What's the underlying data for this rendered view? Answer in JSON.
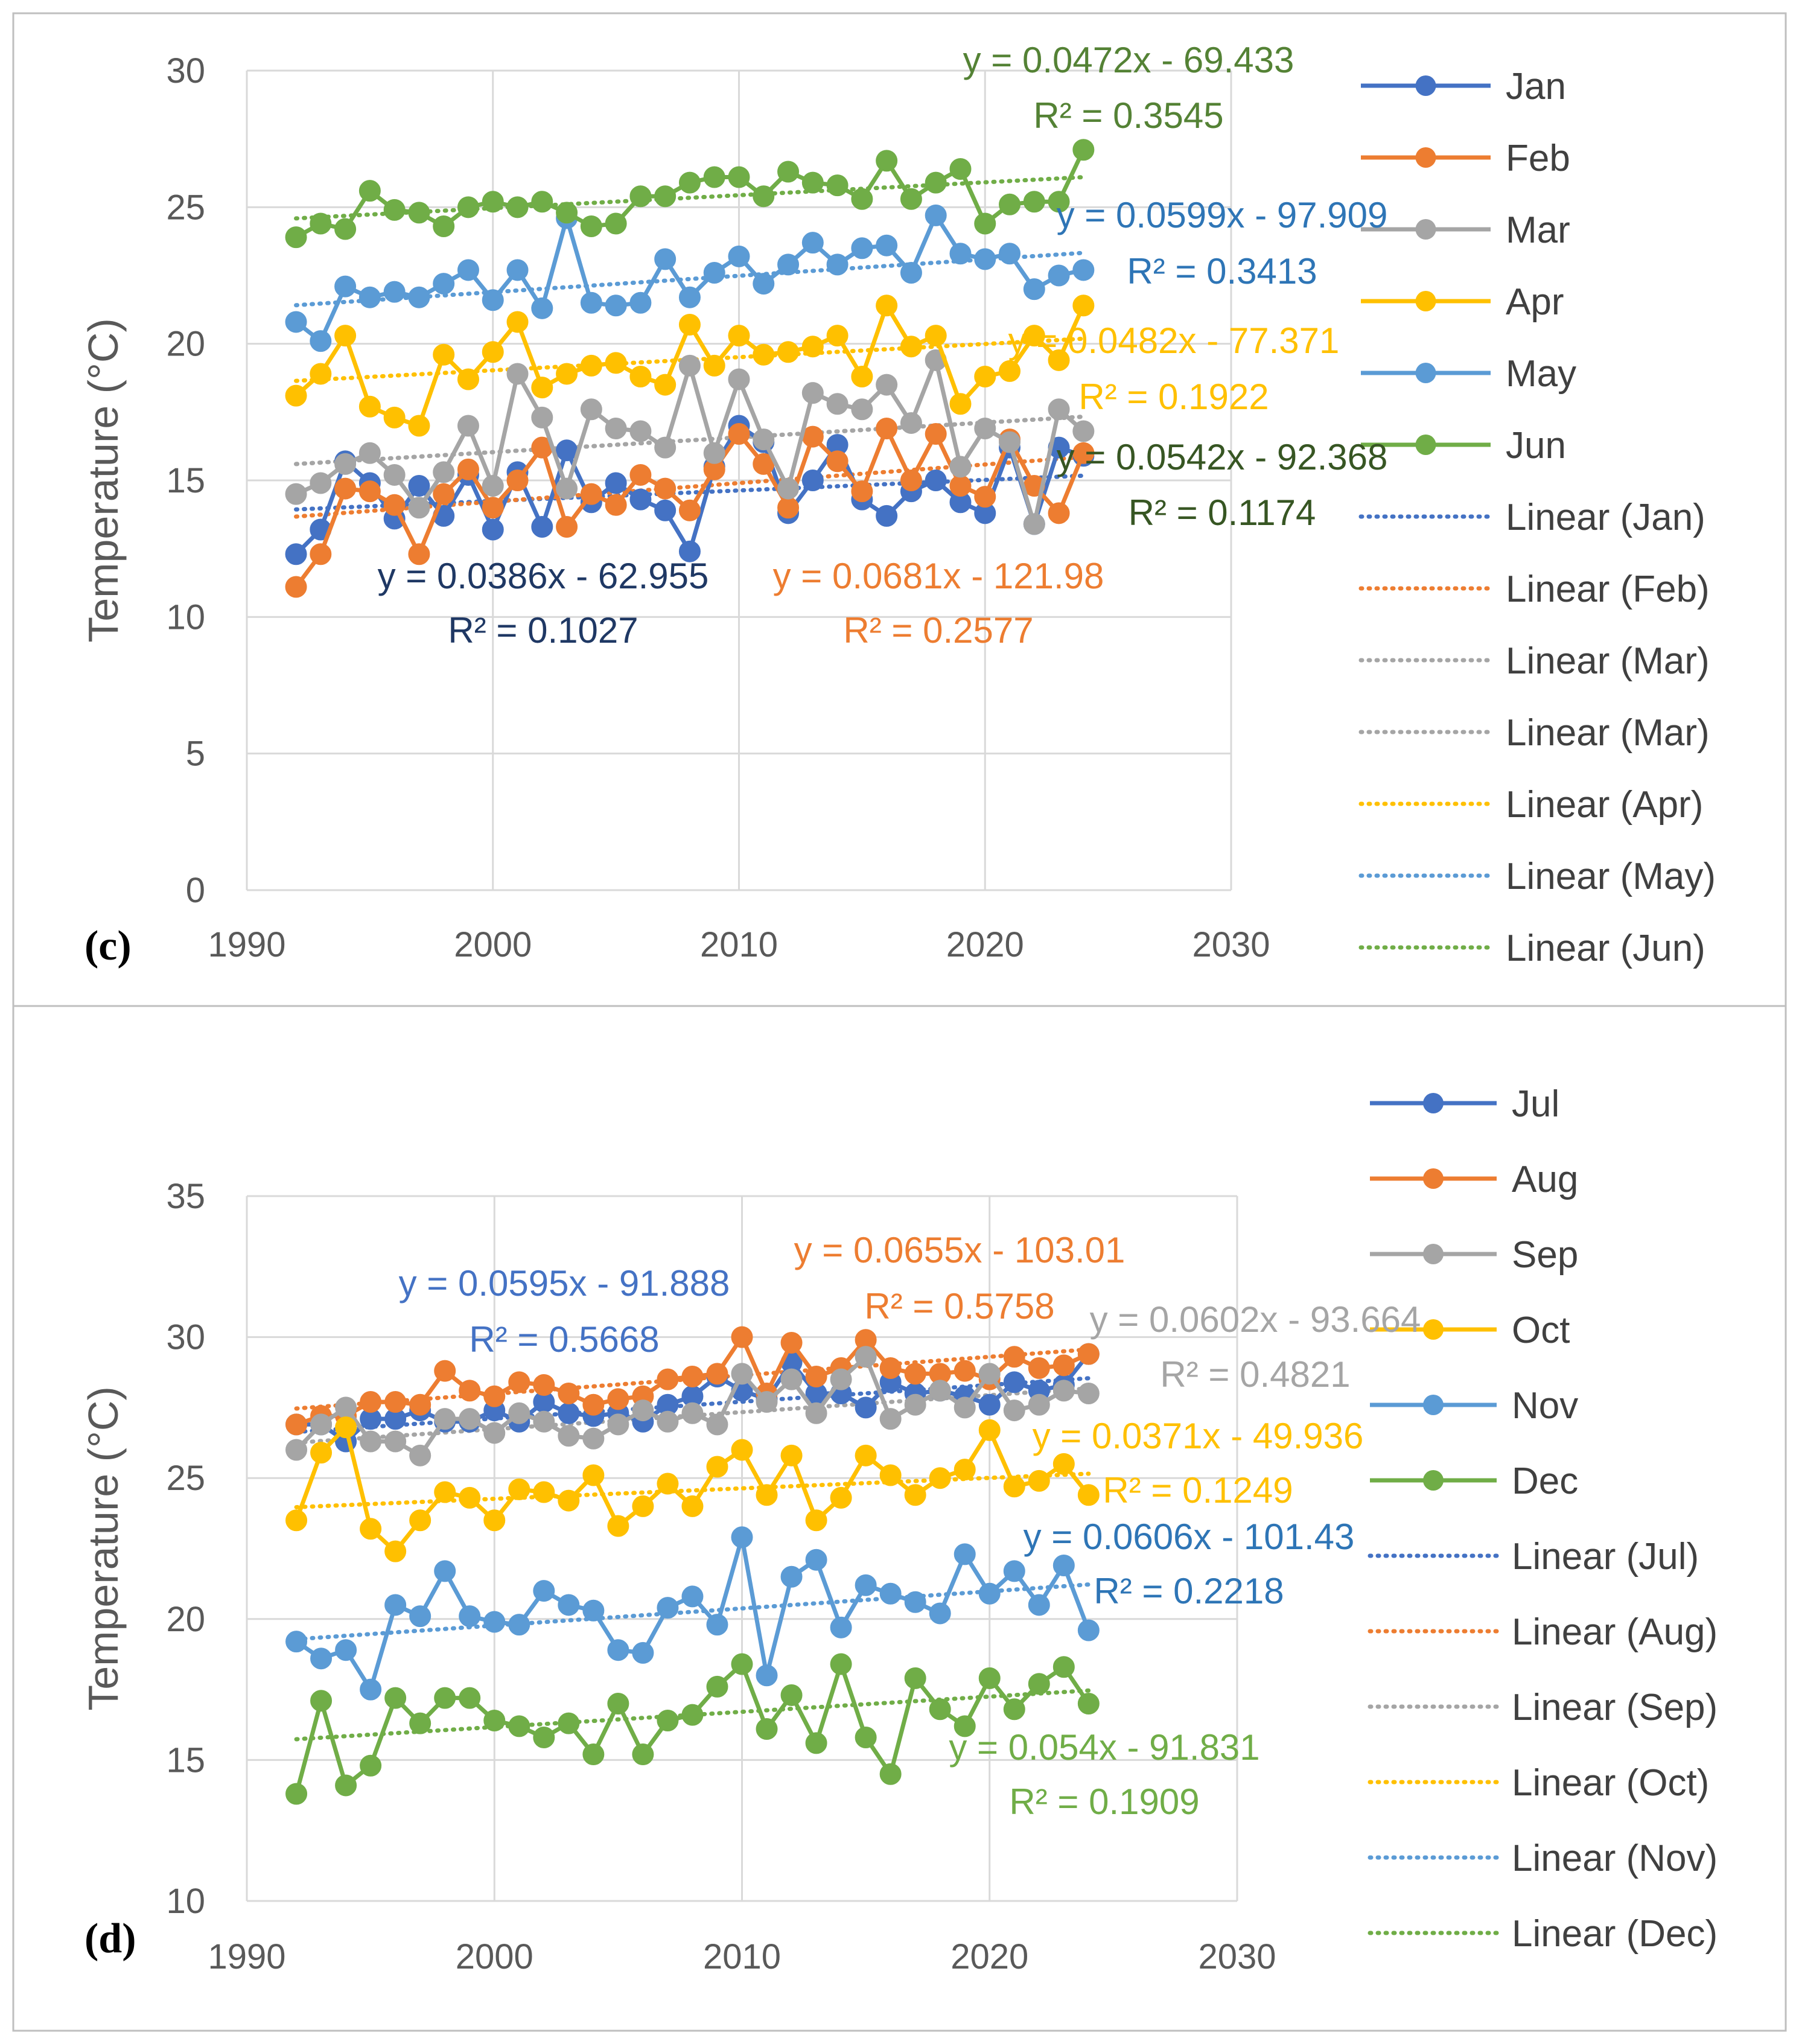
{
  "chart_data": [
    {
      "type": "line",
      "panel_label": "(c)",
      "xlabel": "",
      "ylabel": "Temperature (°C)",
      "xlim": [
        1990,
        2030
      ],
      "ylim": [
        0,
        30
      ],
      "xticks": [
        "1990",
        "2000",
        "2010",
        "2020",
        "2030"
      ],
      "yticks": [
        "0",
        "5",
        "10",
        "15",
        "20",
        "25",
        "30"
      ],
      "grid": true,
      "legend_position": "right",
      "x": [
        1992,
        1993,
        1994,
        1995,
        1996,
        1997,
        1998,
        1999,
        2000,
        2001,
        2002,
        2003,
        2004,
        2005,
        2006,
        2007,
        2008,
        2009,
        2010,
        2011,
        2012,
        2013,
        2014,
        2015,
        2016,
        2017,
        2018,
        2019,
        2020,
        2021,
        2022,
        2023,
        2024
      ],
      "series": [
        {
          "name": "Jan",
          "color": "#4472C4",
          "values": [
            12.3,
            13.2,
            15.7,
            14.9,
            13.6,
            14.8,
            13.7,
            15.2,
            13.2,
            15.3,
            13.3,
            16.1,
            14.2,
            14.9,
            14.3,
            13.9,
            12.4,
            15.5,
            17.0,
            16.4,
            13.8,
            15.0,
            16.3,
            14.3,
            13.7,
            14.6,
            15.0,
            14.2,
            13.8,
            16.2,
            13.4,
            16.2,
            15.9
          ]
        },
        {
          "name": "Feb",
          "color": "#ED7D31",
          "values": [
            11.1,
            12.3,
            14.7,
            14.6,
            14.1,
            12.3,
            14.5,
            15.4,
            14.0,
            15.0,
            16.2,
            13.3,
            14.5,
            14.1,
            15.2,
            14.7,
            13.9,
            15.4,
            16.7,
            15.6,
            14.0,
            16.6,
            15.7,
            14.6,
            16.9,
            15.0,
            16.7,
            14.8,
            14.4,
            16.5,
            14.8,
            13.8,
            16.0
          ]
        },
        {
          "name": "Mar",
          "color": "#A5A5A5",
          "values": [
            14.5,
            14.9,
            15.6,
            16.0,
            15.2,
            14.0,
            15.3,
            17.0,
            14.8,
            18.9,
            17.3,
            14.7,
            17.6,
            16.9,
            16.8,
            16.2,
            19.2,
            16.0,
            18.7,
            16.5,
            14.7,
            18.2,
            17.8,
            17.6,
            18.5,
            17.1,
            19.4,
            15.5,
            16.9,
            16.4,
            13.4,
            17.6,
            16.8
          ]
        },
        {
          "name": "Apr",
          "color": "#FFC000",
          "values": [
            18.1,
            18.9,
            20.3,
            17.7,
            17.3,
            17.0,
            19.6,
            18.7,
            19.7,
            20.8,
            18.4,
            18.9,
            19.2,
            19.3,
            18.8,
            18.5,
            20.7,
            19.2,
            20.3,
            19.6,
            19.7,
            19.9,
            20.3,
            18.8,
            21.4,
            19.9,
            20.3,
            17.8,
            18.8,
            19.0,
            20.3,
            19.4,
            21.4
          ]
        },
        {
          "name": "May",
          "color": "#5B9BD5",
          "values": [
            20.8,
            20.1,
            22.1,
            21.7,
            21.9,
            21.7,
            22.2,
            22.7,
            21.6,
            22.7,
            21.3,
            24.6,
            21.5,
            21.4,
            21.5,
            23.1,
            21.7,
            22.6,
            23.2,
            22.2,
            22.9,
            23.7,
            22.9,
            23.5,
            23.6,
            22.6,
            24.7,
            23.3,
            23.1,
            23.3,
            22.0,
            22.5,
            22.7
          ]
        },
        {
          "name": "Jun",
          "color": "#70AD47",
          "values": [
            23.9,
            24.4,
            24.2,
            25.6,
            24.9,
            24.8,
            24.3,
            25.0,
            25.2,
            25.0,
            25.2,
            24.8,
            24.3,
            24.4,
            25.4,
            25.4,
            25.9,
            26.1,
            26.1,
            25.4,
            26.3,
            25.9,
            25.8,
            25.3,
            26.7,
            25.3,
            25.9,
            26.4,
            24.4,
            25.1,
            25.2,
            25.2,
            27.1
          ]
        }
      ],
      "legend": [
        "Jan",
        "Feb",
        "Mar",
        "Apr",
        "May",
        "Jun",
        "Linear (Jan)",
        "Linear (Feb)",
        "Linear (Mar)",
        "Linear (Mar)",
        "Linear (Apr)",
        "Linear (May)",
        "Linear (Jun)"
      ],
      "trendlines": [
        {
          "series": "Jan",
          "label": "Linear (Jan)",
          "color": "#4472C4",
          "slope": 0.0386,
          "intercept": -62.955
        },
        {
          "series": "Feb",
          "label": "Linear (Feb)",
          "color": "#ED7D31",
          "slope": 0.0681,
          "intercept": -121.98
        },
        {
          "series": "Mar",
          "label": "Linear (Mar)",
          "color": "#A5A5A5",
          "slope": 0.0542,
          "intercept": -92.368
        },
        {
          "series": "Mar",
          "label": "Linear (Mar)",
          "color": "#A5A5A5",
          "slope": 0.0542,
          "intercept": -92.368
        },
        {
          "series": "Apr",
          "label": "Linear (Apr)",
          "color": "#FFC000",
          "slope": 0.0482,
          "intercept": -77.371
        },
        {
          "series": "May",
          "label": "Linear (May)",
          "color": "#5B9BD5",
          "slope": 0.0599,
          "intercept": -97.909
        },
        {
          "series": "Jun",
          "label": "Linear (Jun)",
          "color": "#70AD47",
          "slope": 0.0472,
          "intercept": -69.433
        }
      ],
      "annotations": [
        {
          "eq": "y = 0.0472x - 69.433",
          "r2": "R² = 0.3545",
          "color": "#548235"
        },
        {
          "eq": "y = 0.0599x - 97.909",
          "r2": "R² = 0.3413",
          "color": "#2E75B6"
        },
        {
          "eq": "y = 0.0482x - 77.371",
          "r2": "R² = 0.1922",
          "color": "#FFC000"
        },
        {
          "eq": "y = 0.0542x - 92.368",
          "r2": "R² = 0.1174",
          "color": "#375623"
        },
        {
          "eq": "y = 0.0386x - 62.955",
          "r2": "R² = 0.1027",
          "color": "#1F3864"
        },
        {
          "eq": "y = 0.0681x - 121.98",
          "r2": "R² = 0.2577",
          "color": "#ED7D31"
        }
      ]
    },
    {
      "type": "line",
      "panel_label": "(d)",
      "xlabel": "",
      "ylabel": "Temperature (°C)",
      "xlim": [
        1990,
        2030
      ],
      "ylim": [
        10,
        35
      ],
      "xticks": [
        "1990",
        "2000",
        "2010",
        "2020",
        "2030"
      ],
      "yticks": [
        "10",
        "15",
        "20",
        "25",
        "30",
        "35"
      ],
      "grid": true,
      "legend_position": "right",
      "x": [
        1992,
        1993,
        1994,
        1995,
        1996,
        1997,
        1998,
        1999,
        2000,
        2001,
        2002,
        2003,
        2004,
        2005,
        2006,
        2007,
        2008,
        2009,
        2010,
        2011,
        2012,
        2013,
        2014,
        2015,
        2016,
        2017,
        2018,
        2019,
        2020,
        2021,
        2022,
        2023,
        2024
      ],
      "series": [
        {
          "name": "Jul",
          "color": "#4472C4",
          "values": [
            26.9,
            26.9,
            26.3,
            27.1,
            27.1,
            27.4,
            27.0,
            27.0,
            27.4,
            27.0,
            27.7,
            27.3,
            27.2,
            27.3,
            27.0,
            27.6,
            27.9,
            28.6,
            28.1,
            27.8,
            29.1,
            28.0,
            28.0,
            27.5,
            28.4,
            28.0,
            28.1,
            27.9,
            27.6,
            28.4,
            28.1,
            28.3,
            29.4
          ]
        },
        {
          "name": "Aug",
          "color": "#ED7D31",
          "values": [
            26.9,
            27.2,
            27.2,
            27.7,
            27.7,
            27.6,
            28.8,
            28.1,
            27.9,
            28.4,
            28.3,
            28.0,
            27.6,
            27.8,
            27.9,
            28.5,
            28.6,
            28.7,
            30.0,
            28.0,
            29.8,
            28.6,
            28.9,
            29.9,
            28.9,
            28.7,
            28.7,
            28.8,
            28.5,
            29.3,
            28.9,
            29.0,
            29.4
          ]
        },
        {
          "name": "Sep",
          "color": "#A5A5A5",
          "values": [
            26.0,
            26.9,
            27.5,
            26.3,
            26.3,
            25.8,
            27.1,
            27.1,
            26.6,
            27.3,
            27.0,
            26.5,
            26.4,
            26.9,
            27.4,
            27.0,
            27.3,
            26.9,
            28.7,
            27.7,
            28.5,
            27.3,
            28.5,
            29.3,
            27.1,
            27.6,
            28.1,
            27.5,
            28.7,
            27.4,
            27.6,
            28.1,
            28.0
          ]
        },
        {
          "name": "Oct",
          "color": "#FFC000",
          "values": [
            23.5,
            25.9,
            26.8,
            23.2,
            22.4,
            23.5,
            24.5,
            24.3,
            23.5,
            24.6,
            24.5,
            24.2,
            25.1,
            23.3,
            24.0,
            24.8,
            24.0,
            25.4,
            26.0,
            24.4,
            25.8,
            23.5,
            24.3,
            25.8,
            25.1,
            24.4,
            25.0,
            25.3,
            26.7,
            24.7,
            24.9,
            25.5,
            24.4
          ]
        },
        {
          "name": "Nov",
          "color": "#5B9BD5",
          "values": [
            19.2,
            18.6,
            18.9,
            17.5,
            20.5,
            20.1,
            21.7,
            20.1,
            19.9,
            19.8,
            21.0,
            20.5,
            20.3,
            18.9,
            18.8,
            20.4,
            20.8,
            19.8,
            22.9,
            18.0,
            21.5,
            22.1,
            19.7,
            21.2,
            20.9,
            20.6,
            20.2,
            22.3,
            20.9,
            21.7,
            20.5,
            21.9,
            19.6
          ]
        },
        {
          "name": "Dec",
          "color": "#70AD47",
          "values": [
            13.8,
            17.1,
            14.1,
            14.8,
            17.2,
            16.3,
            17.2,
            17.2,
            16.4,
            16.2,
            15.8,
            16.3,
            15.2,
            17.0,
            15.2,
            16.4,
            16.6,
            17.6,
            18.4,
            16.1,
            17.3,
            15.6,
            18.4,
            15.8,
            14.5,
            17.9,
            16.8,
            16.2,
            17.9,
            16.8,
            17.7,
            18.3,
            17.0
          ]
        }
      ],
      "legend": [
        "Jul",
        "Aug",
        "Sep",
        "Oct",
        "Nov",
        "Dec",
        "Linear (Jul)",
        "Linear (Aug)",
        "Linear (Sep)",
        "Linear (Oct)",
        "Linear (Nov)",
        "Linear (Dec)"
      ],
      "trendlines": [
        {
          "series": "Jul",
          "label": "Linear (Jul)",
          "color": "#4472C4",
          "slope": 0.0595,
          "intercept": -91.888
        },
        {
          "series": "Aug",
          "label": "Linear (Aug)",
          "color": "#ED7D31",
          "slope": 0.0655,
          "intercept": -103.01
        },
        {
          "series": "Sep",
          "label": "Linear (Sep)",
          "color": "#A5A5A5",
          "slope": 0.0602,
          "intercept": -93.664
        },
        {
          "series": "Oct",
          "label": "Linear (Oct)",
          "color": "#FFC000",
          "slope": 0.0371,
          "intercept": -49.936
        },
        {
          "series": "Nov",
          "label": "Linear (Nov)",
          "color": "#5B9BD5",
          "slope": 0.0606,
          "intercept": -101.43
        },
        {
          "series": "Dec",
          "label": "Linear (Dec)",
          "color": "#70AD47",
          "slope": 0.054,
          "intercept": -91.831
        }
      ],
      "annotations": [
        {
          "eq": "y = 0.0595x - 91.888",
          "r2": "R² = 0.5668",
          "color": "#4472C4"
        },
        {
          "eq": "y = 0.0655x - 103.01",
          "r2": "R² = 0.5758",
          "color": "#ED7D31"
        },
        {
          "eq": "y = 0.0602x - 93.664",
          "r2": "R² = 0.4821",
          "color": "#A5A5A5"
        },
        {
          "eq": "y = 0.0371x - 49.936",
          "r2": "R² = 0.1249",
          "color": "#FFC000"
        },
        {
          "eq": "y = 0.0606x - 101.43",
          "r2": "R² = 0.2218",
          "color": "#2E75B6"
        },
        {
          "eq": "y = 0.054x - 91.831",
          "r2": "R² = 0.1909",
          "color": "#70AD47"
        }
      ]
    }
  ]
}
